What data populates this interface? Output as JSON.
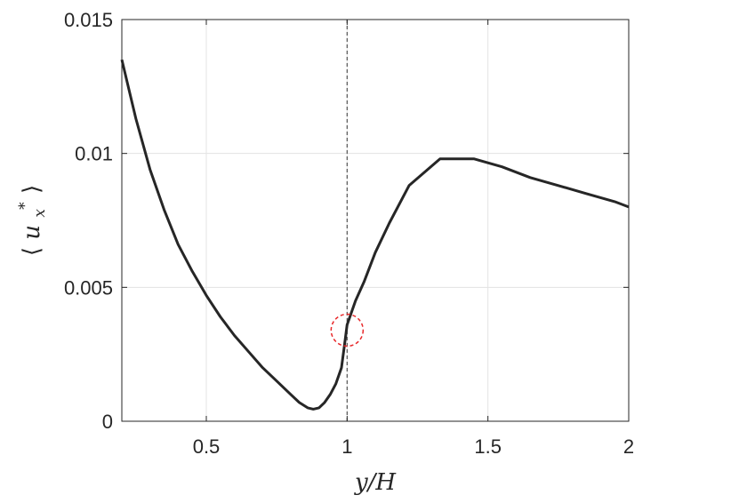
{
  "chart_data": {
    "type": "line",
    "xlabel": "y/H",
    "ylabel": "⟨u*x⟩",
    "ylabel_parts": {
      "open": "⟨",
      "base": "u",
      "sub": "x",
      "sup": "*",
      "close": "⟩"
    },
    "xlim": [
      0.2,
      2.0
    ],
    "ylim": [
      0,
      0.015
    ],
    "grid": true,
    "xticks": [
      0.5,
      1,
      1.5,
      2
    ],
    "xtick_labels": [
      "0.5",
      "1",
      "1.5",
      "2"
    ],
    "yticks": [
      0,
      0.005,
      0.01,
      0.015
    ],
    "ytick_labels": [
      "0",
      "0.005",
      "0.01",
      "0.015"
    ],
    "line_color": "#262626",
    "series": [
      {
        "x": [
          0.2,
          0.25,
          0.3,
          0.35,
          0.4,
          0.45,
          0.5,
          0.55,
          0.6,
          0.65,
          0.7,
          0.75,
          0.8,
          0.83,
          0.86,
          0.88,
          0.9,
          0.92,
          0.94,
          0.96,
          0.98,
          0.99,
          1.0,
          1.03,
          1.06,
          1.1,
          1.15,
          1.22,
          1.33,
          1.45,
          1.55,
          1.65,
          1.75,
          1.85,
          1.95,
          2.0
        ],
        "y": [
          0.0135,
          0.0113,
          0.0094,
          0.0079,
          0.0066,
          0.0056,
          0.0047,
          0.0039,
          0.0032,
          0.0026,
          0.002,
          0.0015,
          0.001,
          0.0007,
          0.0005,
          0.00045,
          0.0005,
          0.0007,
          0.001,
          0.0014,
          0.002,
          0.0028,
          0.0036,
          0.0045,
          0.0052,
          0.0063,
          0.0074,
          0.0088,
          0.0098,
          0.0098,
          0.0095,
          0.0091,
          0.0088,
          0.0085,
          0.0082,
          0.008
        ]
      }
    ],
    "reference_line": {
      "x": 1.0,
      "color": "#555555",
      "style": "dashed"
    },
    "highlight_marker": {
      "x": 1.0,
      "y": 0.0034,
      "color": "#e8282a",
      "shape": "dashed-circle"
    }
  }
}
